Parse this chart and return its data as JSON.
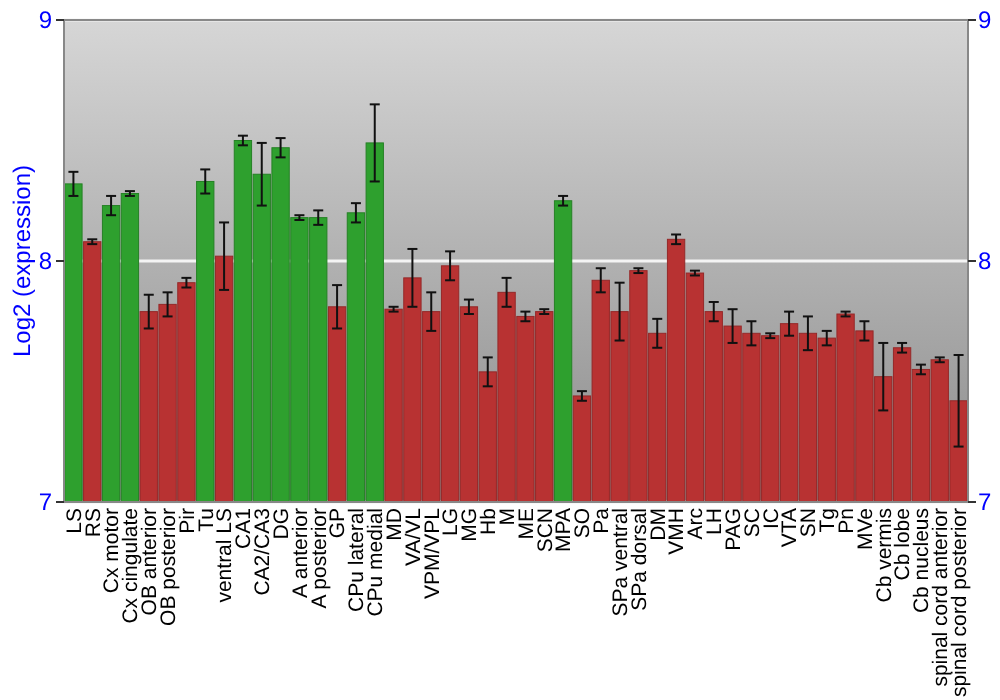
{
  "chart_data": {
    "type": "bar",
    "ylabel": "Log2 (expression)",
    "categories": [
      "LS",
      "RS",
      "Cx motor",
      "Cx cingulate",
      "OB anterior",
      "OB posterior",
      "Pir",
      "Tu",
      "ventral LS",
      "CA1",
      "CA2/CA3",
      "DG",
      "A anterior",
      "A posterior",
      "GP",
      "CPu lateral",
      "CPu medial",
      "MD",
      "VA/VL",
      "VPM/VPL",
      "LG",
      "MG",
      "Hb",
      "M",
      "ME",
      "SCN",
      "MPA",
      "SO",
      "Pa",
      "SPa ventral",
      "SPa dorsal",
      "DM",
      "VMH",
      "Arc",
      "LH",
      "PAG",
      "SC",
      "IC",
      "VTA",
      "SN",
      "Tg",
      "Pn",
      "MVe",
      "Cb vermis",
      "Cb lobe",
      "Cb nucleus",
      "spinal cord anterior",
      "spinal cord posterior"
    ],
    "values": [
      8.32,
      8.08,
      8.23,
      8.28,
      7.79,
      7.82,
      7.91,
      8.33,
      8.02,
      8.5,
      8.36,
      8.47,
      8.18,
      8.18,
      7.81,
      8.2,
      8.49,
      7.8,
      7.93,
      7.79,
      7.98,
      7.81,
      7.54,
      7.87,
      7.77,
      7.79,
      8.25,
      7.44,
      7.92,
      7.79,
      7.96,
      7.7,
      8.09,
      7.95,
      7.79,
      7.73,
      7.7,
      7.69,
      7.74,
      7.7,
      7.68,
      7.78,
      7.71,
      7.52,
      7.64,
      7.55,
      7.59,
      7.42
    ],
    "errors": [
      0.05,
      0.01,
      0.04,
      0.01,
      0.07,
      0.05,
      0.02,
      0.05,
      0.14,
      0.02,
      0.13,
      0.04,
      0.01,
      0.03,
      0.09,
      0.04,
      0.16,
      0.01,
      0.12,
      0.08,
      0.06,
      0.03,
      0.06,
      0.06,
      0.02,
      0.01,
      0.02,
      0.02,
      0.05,
      0.12,
      0.01,
      0.06,
      0.02,
      0.01,
      0.04,
      0.07,
      0.05,
      0.01,
      0.05,
      0.07,
      0.03,
      0.01,
      0.04,
      0.14,
      0.02,
      0.02,
      0.01,
      0.19
    ],
    "colors": [
      "#2ea02e",
      "#b83232",
      "#2ea02e",
      "#2ea02e",
      "#b83232",
      "#b83232",
      "#b83232",
      "#2ea02e",
      "#b83232",
      "#2ea02e",
      "#2ea02e",
      "#2ea02e",
      "#2ea02e",
      "#2ea02e",
      "#b83232",
      "#2ea02e",
      "#2ea02e",
      "#b83232",
      "#b83232",
      "#b83232",
      "#b83232",
      "#b83232",
      "#b83232",
      "#b83232",
      "#b83232",
      "#b83232",
      "#2ea02e",
      "#b83232",
      "#b83232",
      "#b83232",
      "#b83232",
      "#b83232",
      "#b83232",
      "#b83232",
      "#b83232",
      "#b83232",
      "#b83232",
      "#b83232",
      "#b83232",
      "#b83232",
      "#b83232",
      "#b83232",
      "#b83232",
      "#b83232",
      "#b83232",
      "#b83232",
      "#b83232",
      "#b83232"
    ],
    "ylim": [
      7,
      9
    ],
    "yticks": [
      7,
      8,
      9
    ],
    "y2lim": [
      7,
      9
    ],
    "y2ticks": [
      7,
      8,
      9
    ],
    "grid": "y"
  }
}
